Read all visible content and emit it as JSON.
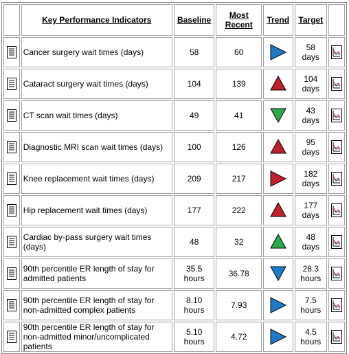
{
  "header": {
    "indicator": "Key Performance Indicators",
    "baseline": "Baseline",
    "recent": "Most Recent",
    "trend": "Trend",
    "target": "Target"
  },
  "rows": [
    {
      "label": "Cancer surgery wait times (days)",
      "baseline": "58",
      "recent": "60",
      "target": "58 days",
      "trend": "right",
      "color": "#1f7acb"
    },
    {
      "label": "Cataract surgery wait times (days)",
      "baseline": "104",
      "recent": "139",
      "target": "104 days",
      "trend": "up",
      "color": "#c0202a"
    },
    {
      "label": "CT scan wait times (days)",
      "baseline": "49",
      "recent": "41",
      "target": "43 days",
      "trend": "down",
      "color": "#2fa84a"
    },
    {
      "label": "Diagnostic MRI scan wait times (days)",
      "baseline": "100",
      "recent": "126",
      "target": "95 days",
      "trend": "up",
      "color": "#c0202a"
    },
    {
      "label": "Knee replacement wait times (days)",
      "baseline": "209",
      "recent": "217",
      "target": "182 days",
      "trend": "right",
      "color": "#c0202a"
    },
    {
      "label": "Hip replacement wait times (days)",
      "baseline": "177",
      "recent": "222",
      "target": "177 days",
      "trend": "up",
      "color": "#c0202a"
    },
    {
      "label": "Cardiac by-pass surgery wait times (days)",
      "baseline": "48",
      "recent": "32",
      "target": "48 days",
      "trend": "up",
      "color": "#2fa84a"
    },
    {
      "label": "90th percentile ER length of stay for admitted patients",
      "baseline": "35.5 hours",
      "recent": "36.78",
      "target": "28.3 hours",
      "trend": "down",
      "color": "#1f7acb"
    },
    {
      "label": "90th percentile ER length of stay for non-admitted complex patients",
      "baseline": "8.10 hours",
      "recent": "7.93",
      "target": "7.5 hours",
      "trend": "right",
      "color": "#1f7acb"
    },
    {
      "label": "90th percentile ER length of stay for non-admitted minor/uncomplicated patients",
      "baseline": "5.10 hours",
      "recent": "4.72",
      "target": "4.5 hours",
      "trend": "right",
      "color": "#1f7acb"
    }
  ]
}
